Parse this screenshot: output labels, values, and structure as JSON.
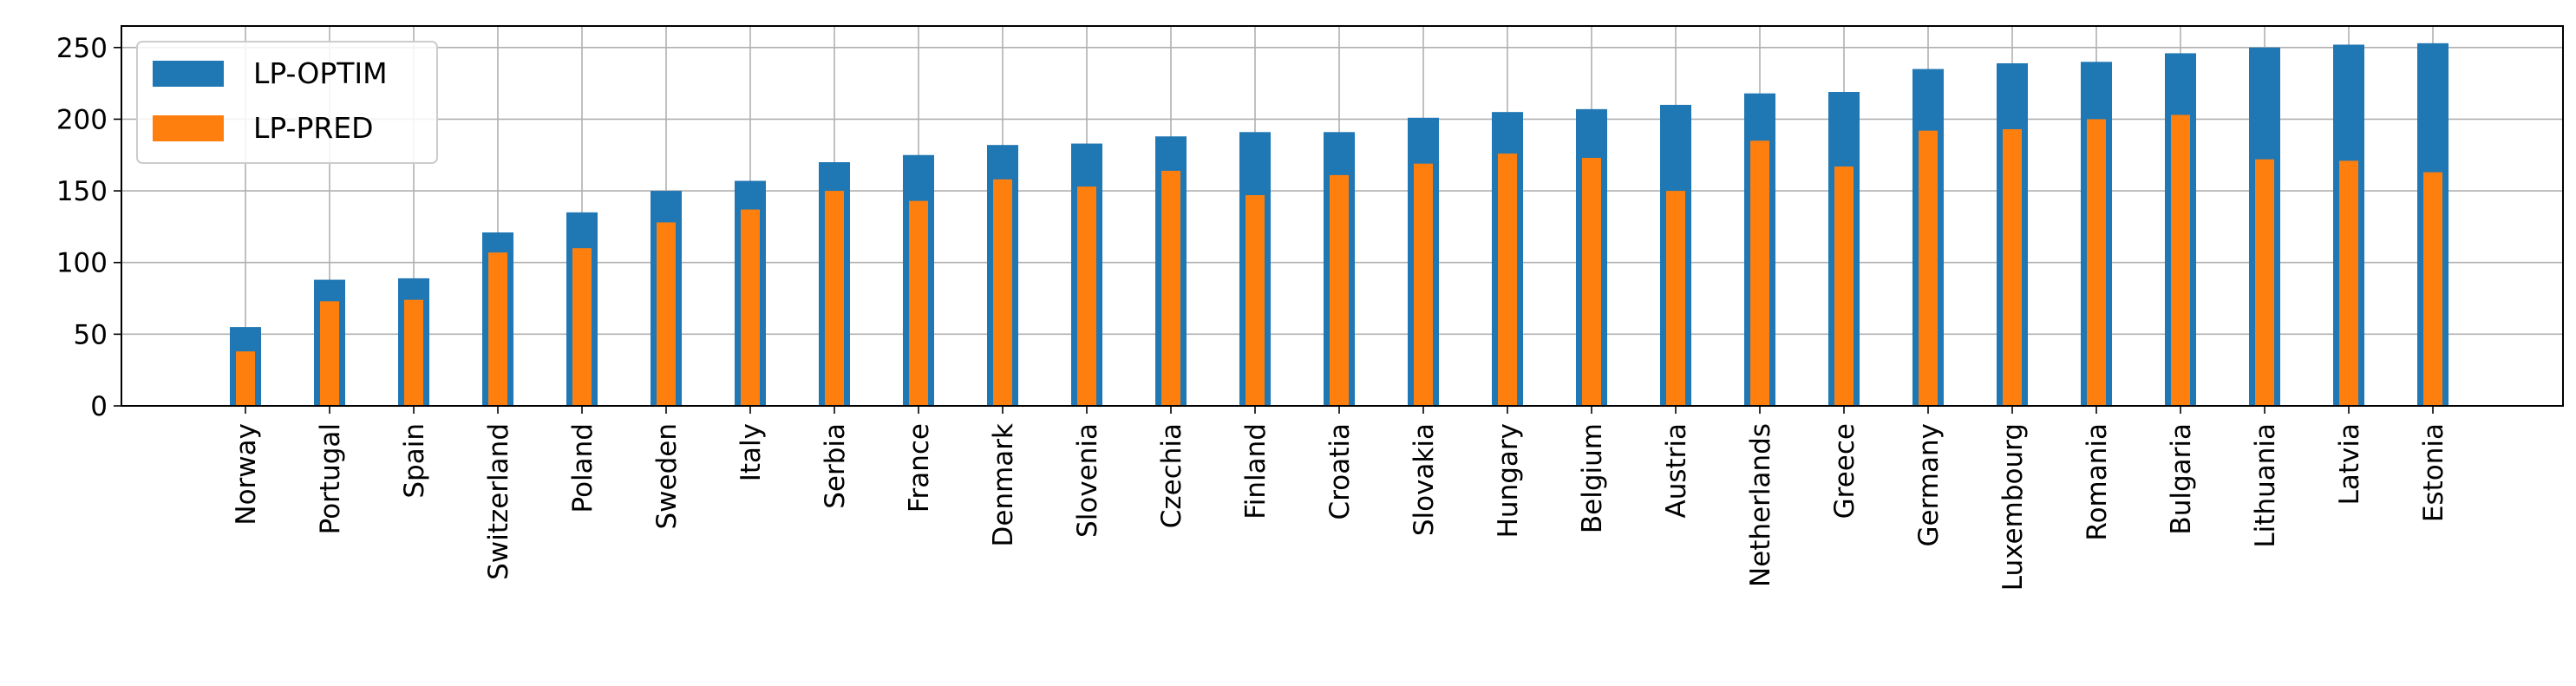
{
  "chart_data": {
    "type": "bar",
    "title": "",
    "xlabel": "",
    "ylabel": "",
    "ylim": [
      0,
      265
    ],
    "yticks": [
      0,
      50,
      100,
      150,
      200,
      250
    ],
    "ytick_labels": [
      "0",
      "50",
      "100",
      "150",
      "200",
      "250"
    ],
    "grid": true,
    "legend_position": "upper-left",
    "categories": [
      "Norway",
      "Portugal",
      "Spain",
      "Switzerland",
      "Poland",
      "Sweden",
      "Italy",
      "Serbia",
      "France",
      "Denmark",
      "Slovenia",
      "Czechia",
      "Finland",
      "Croatia",
      "Slovakia",
      "Hungary",
      "Belgium",
      "Austria",
      "Netherlands",
      "Greece",
      "Germany",
      "Luxembourg",
      "Romania",
      "Bulgaria",
      "Lithuania",
      "Latvia",
      "Estonia"
    ],
    "series": [
      {
        "name": "LP-OPTIM",
        "color": "#1f77b4",
        "values": [
          55,
          88,
          89,
          121,
          135,
          150,
          157,
          170,
          175,
          182,
          183,
          188,
          191,
          191,
          201,
          205,
          207,
          210,
          218,
          219,
          235,
          239,
          240,
          246,
          250,
          252,
          253
        ]
      },
      {
        "name": "LP-PRED",
        "color": "#ff7f0e",
        "values": [
          38,
          73,
          74,
          107,
          110,
          128,
          137,
          150,
          143,
          158,
          153,
          164,
          147,
          161,
          169,
          176,
          173,
          150,
          185,
          167,
          192,
          193,
          200,
          203,
          172,
          171,
          163
        ]
      }
    ]
  }
}
